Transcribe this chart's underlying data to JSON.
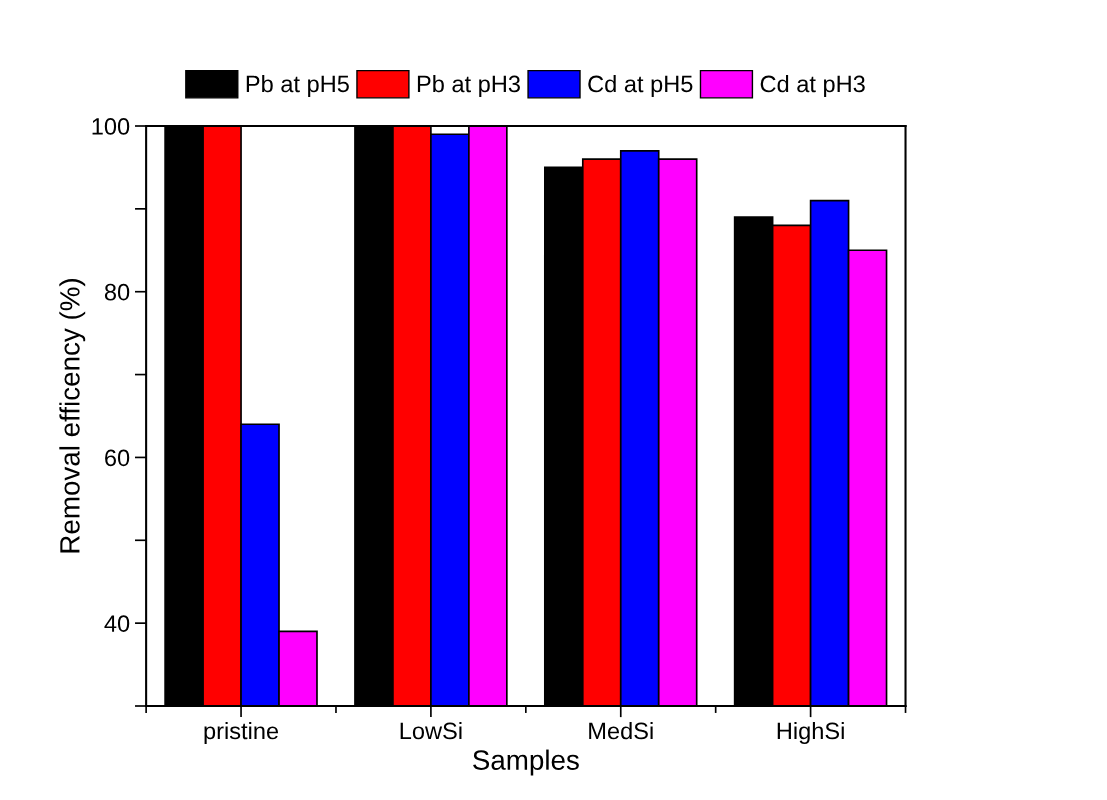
{
  "chart_data": {
    "type": "bar",
    "xlabel": "Samples",
    "ylabel": "Removal efficency (%)",
    "categories": [
      "pristine",
      "LowSi",
      "MedSi",
      "HighSi"
    ],
    "series": [
      {
        "name": "Pb at pH5",
        "color": "#000000",
        "values": [
          100,
          100,
          95,
          89
        ]
      },
      {
        "name": "Pb at pH3",
        "color": "#ff0000",
        "values": [
          100,
          100,
          96,
          88
        ]
      },
      {
        "name": "Cd at pH5",
        "color": "#0000ff",
        "values": [
          64,
          99,
          97,
          91
        ]
      },
      {
        "name": "Cd at pH3",
        "color": "#ff00ff",
        "values": [
          39,
          100,
          96,
          85
        ]
      }
    ],
    "ylim": [
      30,
      100
    ],
    "yticks": [
      {
        "value": 30,
        "label": null
      },
      40,
      {
        "value": 50,
        "label": null
      },
      60,
      {
        "value": 70,
        "label": null
      },
      80,
      {
        "value": 90,
        "label": null
      },
      100
    ],
    "grid": false,
    "legend": "top"
  }
}
